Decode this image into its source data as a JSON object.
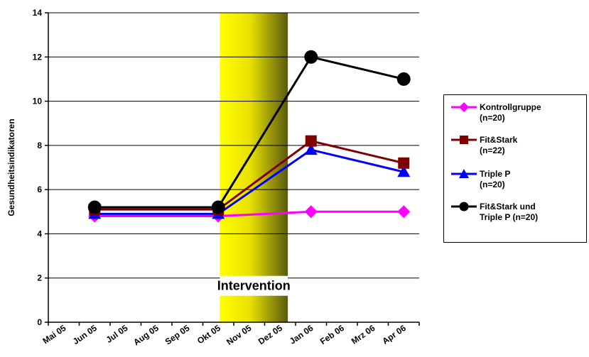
{
  "chart_data": {
    "type": "line",
    "categories": [
      "Mai 05",
      "Jun 05",
      "Jul 05",
      "Aug 05",
      "Sep 05",
      "Okt 05",
      "Nov 05",
      "Dez 05",
      "Jan 06",
      "Feb 06",
      "Mrz 06",
      "Apr 06"
    ],
    "ylabel": "Gesundheitsindikatoren",
    "ylim": [
      0,
      14
    ],
    "yticks": [
      0,
      2,
      4,
      6,
      8,
      10,
      12,
      14
    ],
    "grid": "horizontal",
    "band": {
      "label": "Intervention",
      "start": "Okt 05",
      "end": "Dez 05"
    },
    "legend_position": "right",
    "series": [
      {
        "name": "Kontrollgruppe (n=20)",
        "color": "#ff00ff",
        "marker": "diamond",
        "points": [
          {
            "x": "Jun 05",
            "y": 4.8
          },
          {
            "x": "Okt 05",
            "y": 4.8
          },
          {
            "x": "Jan 06",
            "y": 5.0
          },
          {
            "x": "Apr 06",
            "y": 5.0
          }
        ]
      },
      {
        "name": "Fit&Stark (n=22)",
        "color": "#800000",
        "marker": "square",
        "points": [
          {
            "x": "Jun 05",
            "y": 5.1
          },
          {
            "x": "Okt 05",
            "y": 5.1
          },
          {
            "x": "Jan 06",
            "y": 8.2
          },
          {
            "x": "Apr 06",
            "y": 7.2
          }
        ]
      },
      {
        "name": "Triple P (n=20)",
        "color": "#0000ff",
        "marker": "triangle",
        "points": [
          {
            "x": "Jun 05",
            "y": 4.9
          },
          {
            "x": "Okt 05",
            "y": 4.9
          },
          {
            "x": "Jan 06",
            "y": 7.8
          },
          {
            "x": "Apr 06",
            "y": 6.8
          }
        ]
      },
      {
        "name": "Fit&Stark und Triple P (n=20)",
        "color": "#000000",
        "marker": "circle",
        "points": [
          {
            "x": "Jun 05",
            "y": 5.2
          },
          {
            "x": "Okt 05",
            "y": 5.2
          },
          {
            "x": "Jan 06",
            "y": 12.0
          },
          {
            "x": "Apr 06",
            "y": 11.0
          }
        ]
      }
    ]
  },
  "legend": {
    "items": [
      {
        "lines": [
          "Kontrollgruppe",
          "(n=20)"
        ]
      },
      {
        "lines": [
          "Fit&Stark",
          "(n=22)"
        ]
      },
      {
        "lines": [
          "Triple P",
          "(n=20)"
        ]
      },
      {
        "lines": [
          "Fit&Stark und",
          "Triple P (n=20)"
        ]
      }
    ]
  }
}
